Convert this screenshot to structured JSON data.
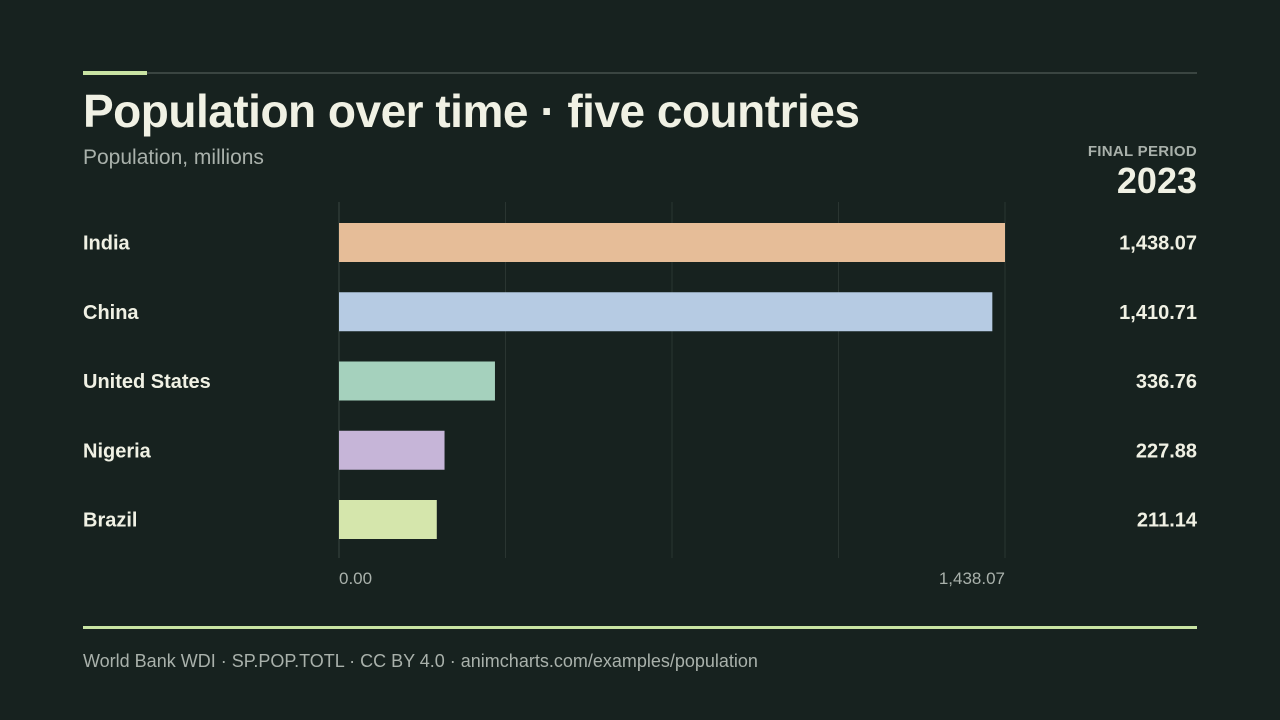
{
  "header": {
    "title": "Population over time · five countries",
    "subtitle": "Population, millions",
    "period_label": "FINAL PERIOD",
    "period_value": "2023"
  },
  "footer": {
    "source": "World Bank WDI · SP.POP.TOTL · CC BY 4.0 · animcharts.com/examples/population"
  },
  "colors": {
    "background": "#17221f",
    "accent": "#c9e4a3",
    "grid": "#2a3531"
  },
  "chart_data": {
    "type": "bar",
    "orientation": "horizontal",
    "categories": [
      "India",
      "China",
      "United States",
      "Nigeria",
      "Brazil"
    ],
    "values": [
      1438.07,
      1410.71,
      336.76,
      227.88,
      211.14
    ],
    "value_labels": [
      "1,438.07",
      "1,410.71",
      "336.76",
      "227.88",
      "211.14"
    ],
    "colors": [
      "#e6bd98",
      "#b6cbe3",
      "#a5d1bd",
      "#c6b5d8",
      "#d5e6ac"
    ],
    "xlim": [
      0,
      1438.07
    ],
    "x_tick_labels": [
      "0.00",
      "1,438.07"
    ],
    "grid": true,
    "grid_lines": 4
  }
}
